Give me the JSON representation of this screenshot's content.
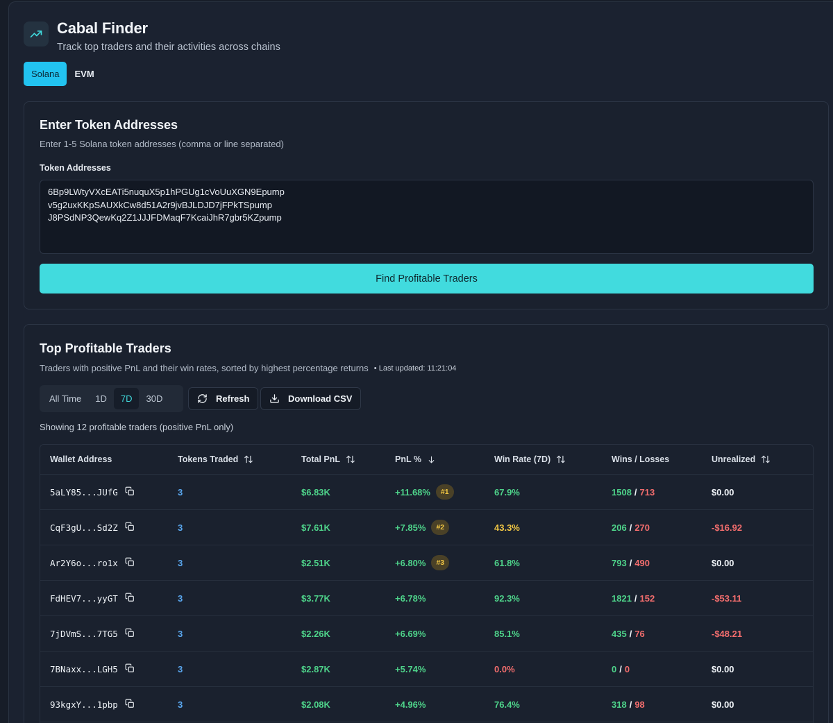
{
  "header": {
    "title": "Cabal Finder",
    "subtitle": "Track top traders and their activities across chains"
  },
  "chain_tabs": [
    {
      "label": "Solana",
      "active": true
    },
    {
      "label": "EVM",
      "active": false
    }
  ],
  "token_card": {
    "title": "Enter Token Addresses",
    "description": "Enter 1-5 Solana token addresses (comma or line separated)",
    "field_label": "Token Addresses",
    "addresses": [
      "6Bp9LWtyVXcEATi5nuquX5p1hPGUg1cVoUuXGN9Epump",
      "v5g2uxKKpSAUXkCw8d51A2r9jvBJLDJD7jFPkTSpump",
      "J8PSdNP3QewKq2Z1JJJFDMaqF7KcaiJhR7gbr5KZpump"
    ],
    "find_button": "Find Profitable Traders"
  },
  "traders_card": {
    "title": "Top Profitable Traders",
    "description": "Traders with positive PnL and their win rates, sorted by highest percentage returns",
    "last_updated": "• Last updated: 11:21:04",
    "ranges": [
      {
        "label": "All Time",
        "active": false
      },
      {
        "label": "1D",
        "active": false
      },
      {
        "label": "7D",
        "active": true
      },
      {
        "label": "30D",
        "active": false
      }
    ],
    "refresh_label": "Refresh",
    "download_label": "Download CSV",
    "showing": "Showing 12 profitable traders (positive PnL only)",
    "columns": [
      "Wallet Address",
      "Tokens Traded",
      "Total PnL",
      "PnL %",
      "Win Rate (7D)",
      "Wins / Losses",
      "Unrealized"
    ],
    "rows": [
      {
        "wallet": "5aLY85...JUfG",
        "tokens": "3",
        "pnl": "$6.83K",
        "pnl_pct": "+11.68%",
        "rank": "#1",
        "win_rate": "67.9%",
        "win_color": "green",
        "wins": "1508",
        "losses": "713",
        "unrealized": "$0.00",
        "unreal_color": "white"
      },
      {
        "wallet": "CqF3gU...Sd2Z",
        "tokens": "3",
        "pnl": "$7.61K",
        "pnl_pct": "+7.85%",
        "rank": "#2",
        "win_rate": "43.3%",
        "win_color": "yellow",
        "wins": "206",
        "losses": "270",
        "unrealized": "-$16.92",
        "unreal_color": "red"
      },
      {
        "wallet": "Ar2Y6o...ro1x",
        "tokens": "3",
        "pnl": "$2.51K",
        "pnl_pct": "+6.80%",
        "rank": "#3",
        "win_rate": "61.8%",
        "win_color": "green",
        "wins": "793",
        "losses": "490",
        "unrealized": "$0.00",
        "unreal_color": "white"
      },
      {
        "wallet": "FdHEV7...yyGT",
        "tokens": "3",
        "pnl": "$3.77K",
        "pnl_pct": "+6.78%",
        "rank": "",
        "win_rate": "92.3%",
        "win_color": "green",
        "wins": "1821",
        "losses": "152",
        "unrealized": "-$53.11",
        "unreal_color": "red"
      },
      {
        "wallet": "7jDVmS...7TG5",
        "tokens": "3",
        "pnl": "$2.26K",
        "pnl_pct": "+6.69%",
        "rank": "",
        "win_rate": "85.1%",
        "win_color": "green",
        "wins": "435",
        "losses": "76",
        "unrealized": "-$48.21",
        "unreal_color": "red"
      },
      {
        "wallet": "7BNaxx...LGH5",
        "tokens": "3",
        "pnl": "$2.87K",
        "pnl_pct": "+5.74%",
        "rank": "",
        "win_rate": "0.0%",
        "win_color": "red",
        "wins": "0",
        "losses": "0",
        "unrealized": "$0.00",
        "unreal_color": "white"
      },
      {
        "wallet": "93kgxY...1pbp",
        "tokens": "3",
        "pnl": "$2.08K",
        "pnl_pct": "+4.96%",
        "rank": "",
        "win_rate": "76.4%",
        "win_color": "green",
        "wins": "318",
        "losses": "98",
        "unrealized": "$0.00",
        "unreal_color": "white"
      }
    ]
  }
}
